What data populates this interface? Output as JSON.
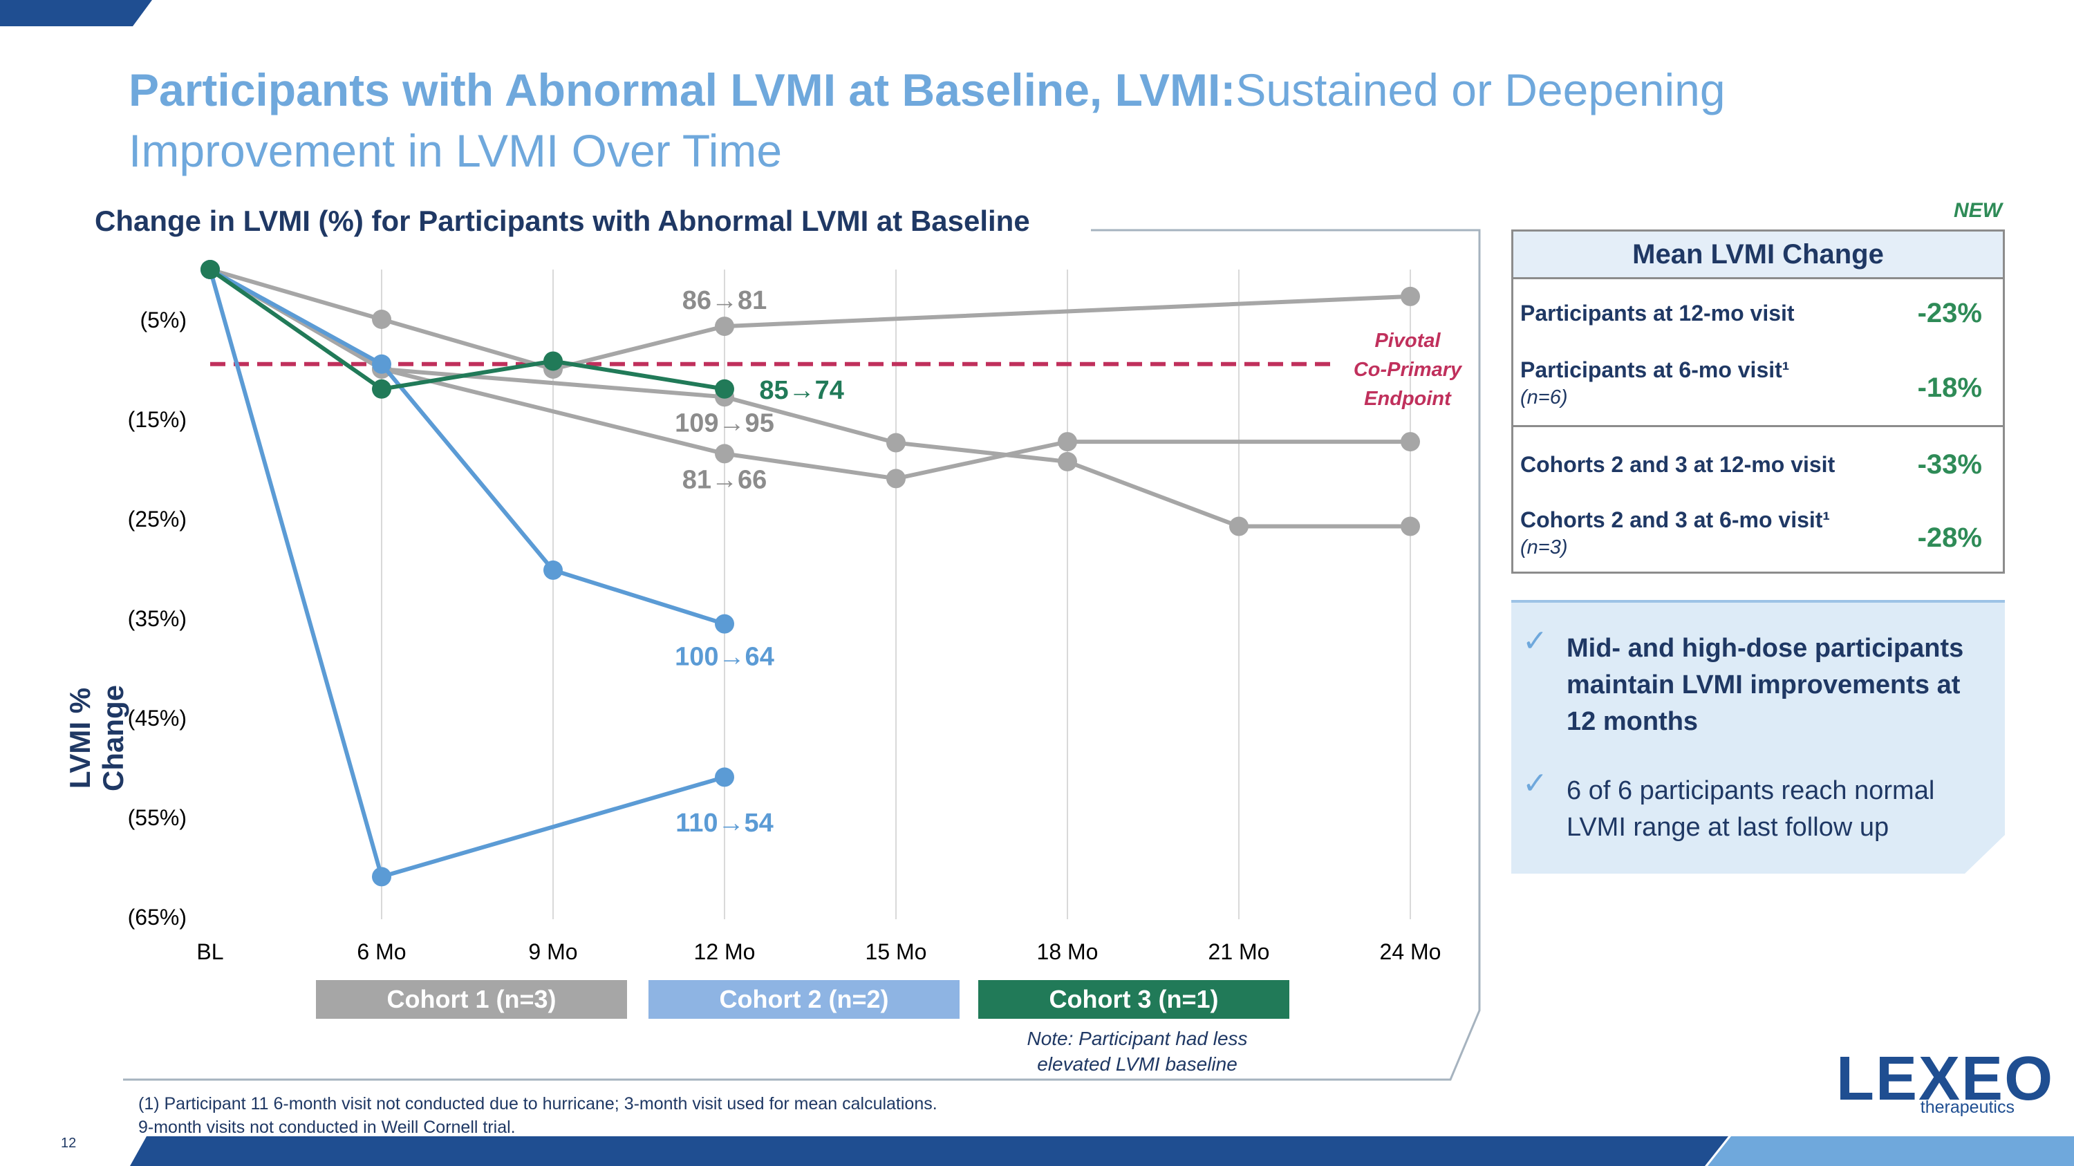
{
  "title": {
    "bold": "Participants with Abnormal LVMI at Baseline, LVMI:",
    "light": "Sustained or Deepening Improvement in LVMI Over Time"
  },
  "chart_heading": "Change in LVMI (%) for Participants with Abnormal LVMI at Baseline",
  "new_badge": "NEW",
  "page_number": "12",
  "footnote": {
    "line1": "(1) Participant 11 6-month visit not conducted due to hurricane; 3-month visit used for mean calculations.",
    "line2": "9-month visits not conducted in Weill Cornell trial."
  },
  "cohorts": [
    {
      "label": "Cohort 1 (n=3)",
      "color": "#a6a6a6"
    },
    {
      "label": "Cohort 2 (n=2)",
      "color": "#8eb4e3"
    },
    {
      "label": "Cohort 3 (n=1)",
      "color": "#217a58"
    }
  ],
  "cohort_note": {
    "line1": "Note: Participant had less",
    "line2": "elevated LVMI baseline"
  },
  "mean_table": {
    "header": "Mean LVMI Change",
    "rows": [
      {
        "label": "Participants at 12-mo visit",
        "sub": "",
        "value": "-23%"
      },
      {
        "label": "Participants at 6-mo visit¹",
        "sub": "(n=6)",
        "value": "-18%"
      },
      {
        "label": "Cohorts 2 and 3 at 12-mo visit",
        "sub": "",
        "value": "-33%"
      },
      {
        "label": "Cohorts 2 and 3 at 6-mo visit¹",
        "sub": "(n=3)",
        "value": "-28%"
      }
    ]
  },
  "bullets": [
    {
      "text": "Mid- and high-dose participants maintain LVMI improvements at 12 months",
      "bold": true
    },
    {
      "text": "6 of 6 participants reach normal LVMI range at last follow up",
      "bold": false
    }
  ],
  "logo": {
    "name": "LEXEO",
    "sub": "therapeutics"
  },
  "colors": {
    "navy": "#1f3864",
    "light_blue": "#6fa8dc",
    "gray": "#a6a6a6",
    "blue": "#5b9bd5",
    "green": "#217a58",
    "threshold": "#c0305c",
    "value_green": "#2e8b57"
  },
  "chart_data": {
    "type": "line",
    "title": "Change in LVMI (%) for Participants with Abnormal LVMI at Baseline",
    "ylabel": "LVMI % Change",
    "xlabel": "",
    "categories": [
      "BL",
      "6 Mo",
      "9 Mo",
      "12 Mo",
      "15 Mo",
      "18 Mo",
      "21 Mo",
      "24 Mo"
    ],
    "y_ticks": [
      {
        "value": -5,
        "label": "(5%)"
      },
      {
        "value": -15,
        "label": "(15%)"
      },
      {
        "value": -25,
        "label": "(25%)"
      },
      {
        "value": -35,
        "label": "(35%)"
      },
      {
        "value": -45,
        "label": "(45%)"
      },
      {
        "value": -55,
        "label": "(55%)"
      },
      {
        "value": -65,
        "label": "(65%)"
      }
    ],
    "ylim": [
      -65,
      0
    ],
    "grid": "vertical",
    "threshold": {
      "value": -9.5,
      "label_lines": [
        "Pivotal",
        "Co-Primary",
        "Endpoint"
      ]
    },
    "series": [
      {
        "cohort": 1,
        "points": [
          {
            "x": 0,
            "y": 0
          },
          {
            "x": 1,
            "y": -5
          },
          {
            "x": 2,
            "y": -10
          },
          {
            "x": 3,
            "y": -5.7
          },
          {
            "x": 7,
            "y": -2.7
          }
        ],
        "label": "86→81",
        "label_at": {
          "x": 3,
          "y": -3
        }
      },
      {
        "cohort": 1,
        "points": [
          {
            "x": 0,
            "y": 0
          },
          {
            "x": 1,
            "y": -10
          },
          {
            "x": 3,
            "y": -12.8
          },
          {
            "x": 4,
            "y": -17.4
          },
          {
            "x": 5,
            "y": -19.3
          },
          {
            "x": 6,
            "y": -25.8
          },
          {
            "x": 7,
            "y": -25.8
          }
        ],
        "label": "109→95",
        "label_at": {
          "x": 3,
          "y": -15.3
        }
      },
      {
        "cohort": 1,
        "points": [
          {
            "x": 0,
            "y": 0
          },
          {
            "x": 1,
            "y": -10
          },
          {
            "x": 3,
            "y": -18.5
          },
          {
            "x": 4,
            "y": -21
          },
          {
            "x": 5,
            "y": -17.3
          },
          {
            "x": 7,
            "y": -17.3
          }
        ],
        "label": "81→66",
        "label_at": {
          "x": 3,
          "y": -21
        }
      },
      {
        "cohort": 2,
        "points": [
          {
            "x": 0,
            "y": 0
          },
          {
            "x": 1,
            "y": -9.5
          },
          {
            "x": 2,
            "y": -30.2
          },
          {
            "x": 3,
            "y": -35.6
          }
        ],
        "label": "100→64",
        "label_at": {
          "x": 3,
          "y": -38.8
        }
      },
      {
        "cohort": 2,
        "points": [
          {
            "x": 0,
            "y": 0
          },
          {
            "x": 1,
            "y": -61
          },
          {
            "x": 3,
            "y": -51
          }
        ],
        "label": "110→54",
        "label_at": {
          "x": 3,
          "y": -55.5
        }
      },
      {
        "cohort": 3,
        "points": [
          {
            "x": 0,
            "y": 0
          },
          {
            "x": 1,
            "y": -12
          },
          {
            "x": 2,
            "y": -9.2
          },
          {
            "x": 3,
            "y": -12
          }
        ],
        "label": "85→74",
        "label_at": {
          "x": 3.45,
          "y": -12
        }
      }
    ]
  }
}
